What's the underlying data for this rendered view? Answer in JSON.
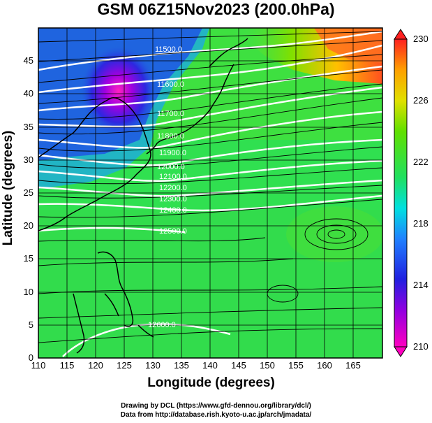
{
  "title": "GSM 06Z15Nov2023 (200.0hPa)",
  "credits": {
    "line1": "Drawing by DCL (https://www.gfd-dennou.org/library/dcl/)",
    "line2": "Data from http://database.rish.kyoto-u.ac.jp/arch/jmadata/"
  },
  "chart_data": {
    "type": "heatmap",
    "title": "GSM 06Z15Nov2023 (200.0hPa)",
    "xlabel": "Longitude (degrees)",
    "ylabel": "Latitude  (degrees)",
    "xlim": [
      110,
      170
    ],
    "ylim": [
      0,
      50
    ],
    "x_ticks": [
      "110",
      "115",
      "120",
      "125",
      "130",
      "135",
      "140",
      "145",
      "150",
      "155",
      "160",
      "165"
    ],
    "y_ticks": [
      "0",
      "5",
      "10",
      "15",
      "20",
      "25",
      "30",
      "35",
      "40",
      "45"
    ],
    "colorbar": {
      "min": 210,
      "max": 230,
      "ticks": [
        "210",
        "214",
        "218",
        "222",
        "226",
        "230"
      ]
    },
    "contour_labels": [
      "11500.0",
      "11600.0",
      "11700.0",
      "11800.0",
      "11900.0",
      "12000.0",
      "12100.0",
      "12200.0",
      "12300.0",
      "12400.0",
      "12500.0",
      "12600.0"
    ],
    "grid": true,
    "overlays": [
      "streamlines",
      "coastlines",
      "height contours"
    ]
  },
  "colors": {
    "cold": "#e000c0",
    "cool": "#2040e0",
    "mid": "#20e060",
    "warm": "#ffa000",
    "hot": "#ff2020"
  }
}
